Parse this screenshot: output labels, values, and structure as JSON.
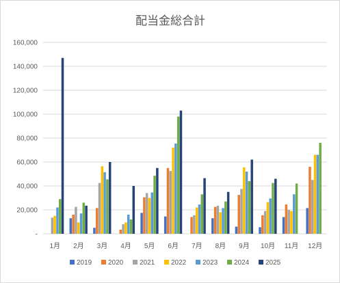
{
  "chart_data": {
    "type": "bar",
    "title": "配当金総合計",
    "xlabel": "",
    "ylabel": "",
    "ylim": [
      0,
      160000
    ],
    "yticks": [
      "-",
      "20,000",
      "40,000",
      "60,000",
      "80,000",
      "100,000",
      "120,000",
      "140,000",
      "160,000"
    ],
    "grid": true,
    "legend_position": "bottom",
    "categories": [
      "1月",
      "2月",
      "3月",
      "4月",
      "5月",
      "6月",
      "7月",
      "8月",
      "9月",
      "10月",
      "11月",
      "12月"
    ],
    "series": [
      {
        "name": "2019",
        "color": "#4472C4",
        "values": [
          0,
          13000,
          5000,
          0,
          17500,
          14500,
          0,
          13000,
          6000,
          5500,
          14000,
          21500
        ]
      },
      {
        "name": "2020",
        "color": "#ED7D31",
        "values": [
          0,
          16000,
          21500,
          3500,
          30500,
          55000,
          14000,
          22500,
          32500,
          15500,
          24500,
          56000
        ]
      },
      {
        "name": "2021",
        "color": "#A5A5A5",
        "values": [
          13500,
          22500,
          42500,
          8000,
          34000,
          52500,
          15500,
          23500,
          37500,
          19000,
          20000,
          45000
        ]
      },
      {
        "name": "2022",
        "color": "#FFC000",
        "values": [
          15000,
          9500,
          56500,
          9500,
          30000,
          72000,
          22000,
          18000,
          55500,
          26500,
          19000,
          66000
        ]
      },
      {
        "name": "2023",
        "color": "#5B9BD5",
        "values": [
          22000,
          17000,
          51500,
          16000,
          34500,
          75500,
          24500,
          21500,
          52000,
          29500,
          33000,
          66000
        ]
      },
      {
        "name": "2024",
        "color": "#70AD47",
        "values": [
          29000,
          26000,
          45500,
          12000,
          48500,
          98000,
          33000,
          27000,
          44000,
          42500,
          42000,
          76000
        ]
      },
      {
        "name": "2025",
        "color": "#264478",
        "values": [
          147000,
          23500,
          60000,
          40000,
          55000,
          103000,
          46500,
          35000,
          62000,
          46000,
          0,
          0
        ]
      }
    ]
  }
}
